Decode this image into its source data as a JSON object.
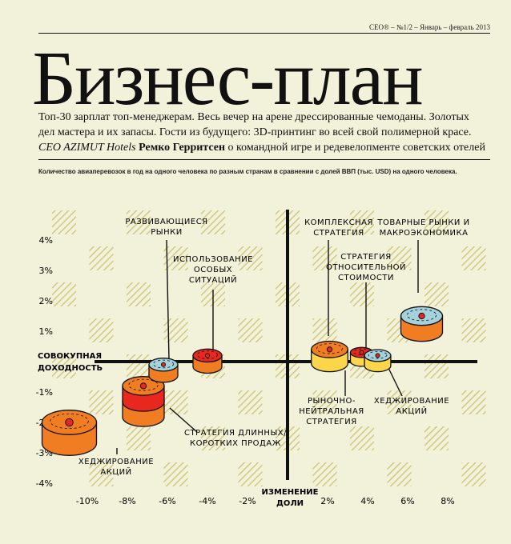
{
  "header": {
    "issue": "CEO® – №1/2 – Январь – февраль 2013",
    "title": "Бизнес-план",
    "lead_line1": "Топ-30 зарплат топ-менеджерам. Весь вечер на арене дрессированные чемоданы. Золотых",
    "lead_line2": "дел мастера и их запасы. Гости из будущего: 3D-принтинг во всей свой полимерной красе.",
    "lead_ceo": "CEO AZIMUT Hotels",
    "lead_name": "Ремко Герритсен",
    "lead_rest": " о командной игре и редевелопменте советских отелей"
  },
  "caption": "Количество авиаперевозок в год на одного человека по разным странам в сравнении с долей ВВП (тыс. USD) на одного человека.",
  "colors": {
    "background": "#f2f1d9",
    "pattern": "#c9c070",
    "orange": "#f07d21",
    "red": "#e8281f",
    "lightblue": "#a3d1dc",
    "yellow": "#fbd54a"
  },
  "chart_data": {
    "type": "scatter",
    "title": "",
    "xlabel": "ИЗМЕНЕНИЕ ДОЛИ",
    "ylabel": "СОВОКУПНАЯ ДОХОДНОСТЬ",
    "xlim": [
      -12,
      9
    ],
    "ylim": [
      -4,
      4
    ],
    "x_ticks": [
      -10,
      -8,
      -6,
      -4,
      -2,
      2,
      4,
      6,
      8
    ],
    "y_ticks": [
      4,
      3,
      2,
      1,
      -1,
      -2,
      -3,
      -4
    ],
    "x_tick_labels": [
      "-10%",
      "-8%",
      "-6%",
      "-4%",
      "-2%",
      "2%",
      "4%",
      "6%",
      "8%"
    ],
    "y_tick_labels": [
      "4%",
      "3%",
      "2%",
      "1%",
      "-1%",
      "-2%",
      "-3%",
      "-4%"
    ],
    "points": [
      {
        "name": "ХЕДЖИРОВАНИЕ АКЦИЙ",
        "x": -10.9,
        "y": -2.0,
        "size": 3,
        "fill": "#f07d21",
        "top": "#f07d21"
      },
      {
        "name": "СТРАТЕГИЯ ДЛИННЫХ/КОРОТКИХ ПРОДАЖ",
        "x": -7.2,
        "y": -1.3,
        "size": 2,
        "fill": "#f07d21",
        "top": "#e8281f"
      },
      {
        "name": "СТРАТЕГИЯ ДЛИННЫХ/КОРОТКИХ ПРОДАЖ",
        "x": -7.2,
        "y": -0.8,
        "size": 2,
        "fill": "#e8281f",
        "top": "#f07d21"
      },
      {
        "name": "РАЗВИВАЮЩИЕСЯ РЫНКИ",
        "x": -6.2,
        "y": -0.1,
        "size": 1,
        "fill": "#f07d21",
        "top": "#a3d1dc"
      },
      {
        "name": "ИСПОЛЬЗОВАНИЕ ОСОБЫХ СИТУАЦИЙ",
        "x": -4.0,
        "y": 0.2,
        "size": 1,
        "fill": "#f07d21",
        "top": "#e8281f"
      },
      {
        "name": "КОМПЛЕКСНАЯ СТРАТЕГИЯ",
        "x": 2.1,
        "y": 0.4,
        "size": 1.6,
        "fill": "#fbd54a",
        "top": "#f07d21"
      },
      {
        "name": "СТРАТЕГИЯ ОТНОСИТЕЛЬНОЙ СТОИМОСТИ",
        "x": 3.7,
        "y": 0.3,
        "size": 0.5,
        "fill": "#fbd54a",
        "top": "#e8281f"
      },
      {
        "name": "ХЕДЖИРОВАНИЕ АКЦИЙ",
        "x": 4.5,
        "y": 0.2,
        "size": 0.8,
        "fill": "#fbd54a",
        "top": "#a3d1dc"
      },
      {
        "name": "ТОВАРНЫЕ РЫНКИ И МАКРОЭКОНОМИКА",
        "x": 6.7,
        "y": 1.5,
        "size": 2,
        "fill": "#f07d21",
        "top": "#a3d1dc"
      }
    ],
    "labels": [
      {
        "lines": [
          "РАЗВИВАЮЩИЕСЯ",
          "РЫНКИ"
        ]
      },
      {
        "lines": [
          "ИСПОЛЬЗОВАНИЕ",
          "ОСОБЫХ",
          "СИТУАЦИЙ"
        ]
      },
      {
        "lines": [
          "КОМПЛЕКСНАЯ",
          "СТРАТЕГИЯ"
        ]
      },
      {
        "lines": [
          "СТРАТЕГИЯ",
          "ОТНОСИТЕЛЬНОЙ",
          "СТОИМОСТИ"
        ]
      },
      {
        "lines": [
          "ТОВАРНЫЕ РЫНКИ И",
          "МАКРОЭКОНОМИКА"
        ]
      },
      {
        "lines": [
          "РЫНОЧНО-",
          "НЕЙТРАЛЬНАЯ",
          "СТРАТЕГИЯ"
        ]
      },
      {
        "lines": [
          "ХЕДЖИРОВАНИЕ",
          "АКЦИЙ"
        ]
      },
      {
        "lines": [
          "СТРАТЕГИЯ ДЛИННЫХ/",
          "КОРОТКИХ ПРОДАЖ"
        ]
      },
      {
        "lines": [
          "ХЕДЖИРОВАНИЕ",
          "АКЦИЙ"
        ]
      }
    ],
    "axis_labels": {
      "y": [
        "СОВОКУПНАЯ",
        "ДОХОДНОСТЬ"
      ],
      "x": [
        "ИЗМЕНЕНИЕ",
        "ДОЛИ"
      ]
    }
  }
}
